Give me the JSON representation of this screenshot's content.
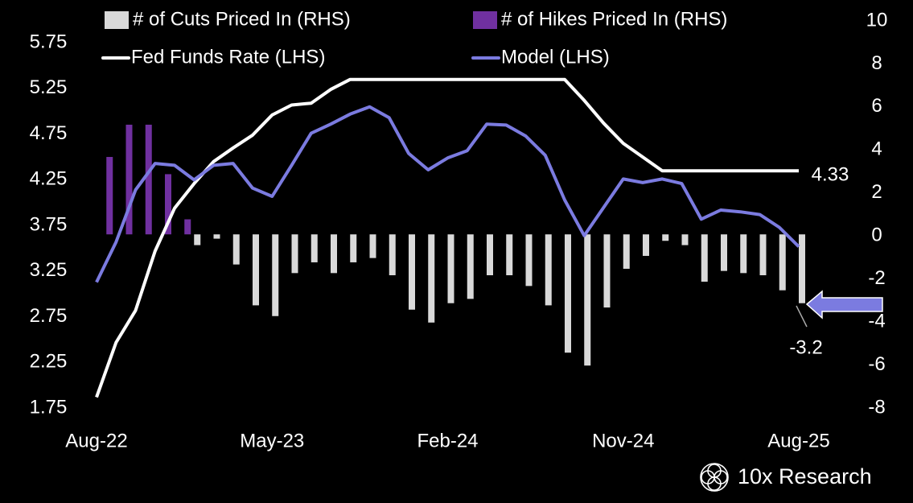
{
  "chart_data": {
    "type": "bar",
    "categories": [
      "Aug-22",
      null,
      null,
      null,
      null,
      null,
      null,
      null,
      null,
      "May-23",
      null,
      null,
      null,
      null,
      null,
      null,
      null,
      null,
      "Feb-24",
      null,
      null,
      null,
      null,
      null,
      null,
      null,
      null,
      "Nov-24",
      null,
      null,
      null,
      null,
      null,
      null,
      null,
      null,
      "Aug-25"
    ],
    "series": [
      {
        "name": "# of Cuts Priced In (RHS)",
        "type": "bar",
        "axis": "y2",
        "color": "#d9d9d9",
        "values": [
          null,
          null,
          null,
          null,
          null,
          -0.5,
          -0.2,
          -1.4,
          -3.3,
          -3.8,
          -1.8,
          -1.3,
          -1.8,
          -1.3,
          -1.1,
          -1.9,
          -3.5,
          -4.1,
          -3.2,
          -3.0,
          -1.9,
          -1.9,
          -2.4,
          -3.3,
          -5.5,
          -6.1,
          -3.4,
          -1.6,
          -1.0,
          -0.3,
          -0.5,
          -2.2,
          -1.7,
          -1.8,
          -1.9,
          -2.6,
          -3.2
        ]
      },
      {
        "name": "# of Hikes Priced In (RHS)",
        "type": "bar",
        "axis": "y2",
        "color": "#7030a0",
        "values": [
          null,
          3.6,
          5.1,
          5.1,
          2.8,
          0.7,
          null,
          null,
          null,
          null,
          null,
          null,
          null,
          null,
          null,
          null,
          null,
          null,
          null,
          null,
          null,
          null,
          null,
          null,
          null,
          null,
          null,
          null,
          null,
          null,
          null,
          null,
          null,
          null,
          null,
          null,
          null
        ]
      },
      {
        "name": "Fed Funds Rate (LHS)",
        "type": "line",
        "color": "#ffffff",
        "values": [
          1.85,
          2.45,
          2.8,
          3.45,
          3.92,
          4.19,
          4.43,
          4.58,
          4.72,
          4.94,
          5.05,
          5.07,
          5.22,
          5.33,
          5.33,
          5.33,
          5.33,
          5.33,
          5.33,
          5.33,
          5.33,
          5.33,
          5.33,
          5.33,
          5.33,
          5.1,
          4.85,
          4.63,
          4.48,
          4.33,
          4.33,
          4.33,
          4.33,
          4.33,
          4.33,
          4.33,
          4.33
        ]
      },
      {
        "name": "Model (LHS)",
        "type": "line",
        "color": "#7b7be0",
        "values": [
          3.11,
          3.55,
          4.12,
          4.41,
          4.39,
          4.23,
          4.39,
          4.41,
          4.14,
          4.05,
          4.39,
          4.74,
          4.84,
          4.95,
          5.03,
          4.91,
          4.52,
          4.34,
          4.47,
          4.55,
          4.84,
          4.83,
          4.71,
          4.5,
          4.01,
          3.62,
          3.93,
          4.24,
          4.2,
          4.24,
          4.19,
          3.8,
          3.9,
          3.88,
          3.85,
          3.71,
          3.5
        ]
      }
    ],
    "ylim": [
      1.75,
      5.75
    ],
    "yticks": [
      1.75,
      2.25,
      2.75,
      3.25,
      3.75,
      4.25,
      4.75,
      5.25,
      5.75
    ],
    "y2lim": [
      -8,
      10
    ],
    "y2ticks": [
      -8,
      -6,
      -4,
      -2,
      0,
      2,
      4,
      6,
      8,
      10
    ],
    "annotations": [
      "4.33",
      "-3.2"
    ],
    "source": "10x Research",
    "legend": "top"
  }
}
